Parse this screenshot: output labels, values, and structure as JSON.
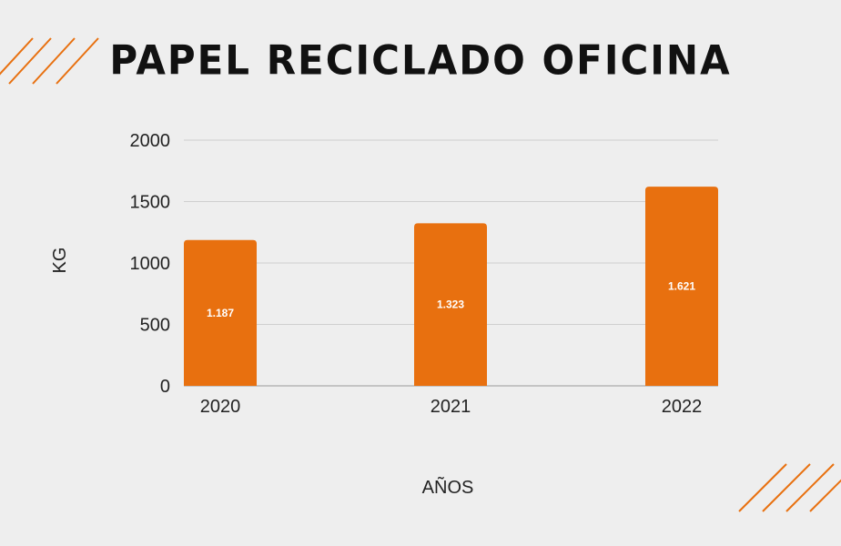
{
  "accent_color": "#e8700f",
  "chart_data": {
    "type": "bar",
    "title": "PAPEL RECICLADO OFICINA",
    "xlabel": "AÑOS",
    "ylabel": "KG",
    "categories": [
      "2020",
      "2021",
      "2022"
    ],
    "values": [
      1187,
      1323,
      1621
    ],
    "data_labels": [
      "1.187",
      "1.323",
      "1.621"
    ],
    "ylim": [
      0,
      2000
    ],
    "yticks": [
      "0",
      "500",
      "1000",
      "1500",
      "2000"
    ],
    "grid": true,
    "color": "#e8700f"
  }
}
